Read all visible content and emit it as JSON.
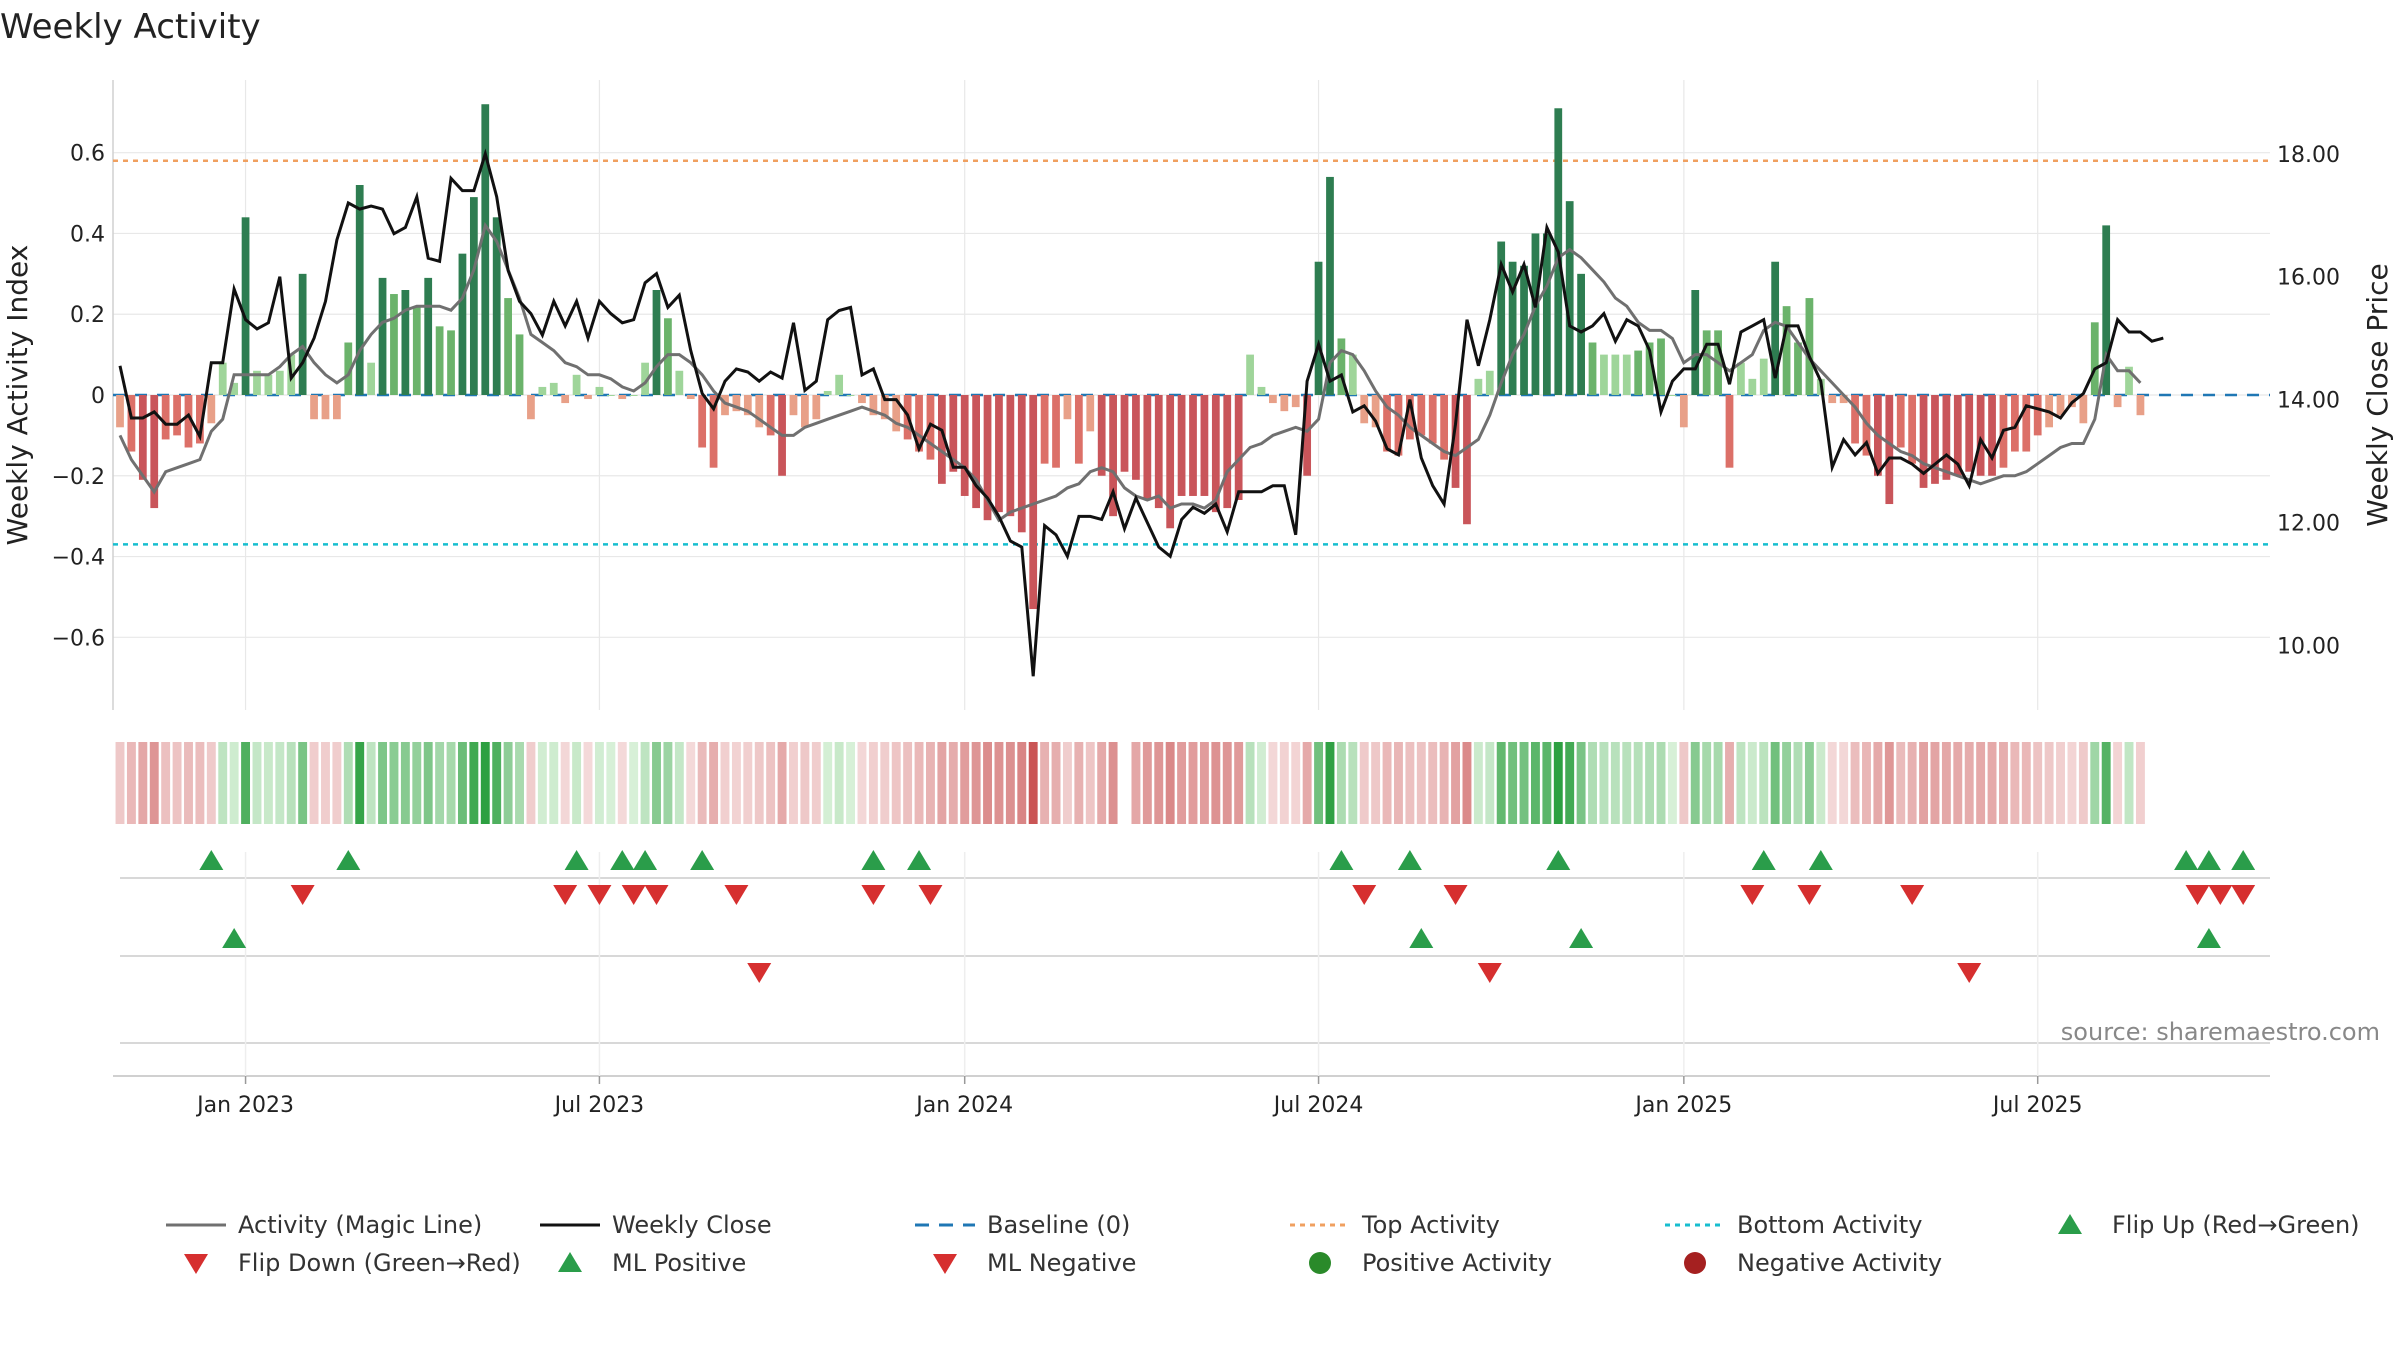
{
  "colors": {
    "strong_green": "#2e7d51",
    "mid_green": "#6bb36b",
    "light_green": "#9fd59a",
    "strong_red": "#c9555a",
    "mid_red": "#dc7068",
    "light_red": "#e8a088",
    "magic_line": "#707070",
    "close_line": "#111111",
    "baseline": "#1f77b4",
    "top_line": "#f0a060",
    "bottom_line": "#17becf",
    "tri_green": "#2a9d4a",
    "tri_red": "#d62f2f",
    "dot_green": "#2a8a2a",
    "dot_red": "#a52020",
    "grid": "#e8e8e8"
  },
  "chart_data": {
    "type": "bar+line",
    "title": "Weekly Activity",
    "ylabel_left": "Weekly Activity Index",
    "ylabel_right": "Weekly Close Price",
    "yticks_left": [
      "0.6",
      "0.4",
      "0.2",
      "0",
      "−0.2",
      "−0.4",
      "−0.6"
    ],
    "yticks_right": [
      "18.00",
      "16.00",
      "14.00",
      "12.00",
      "10.00"
    ],
    "ylim_left": [
      -0.78,
      0.78
    ],
    "ylim_right": [
      8.95,
      19.2
    ],
    "x_dates_label": [
      "Jan 2023",
      "Jul 2023",
      "Jan 2024",
      "Jul 2024",
      "Jan 2025",
      "Jul 2025"
    ],
    "x_tick_week_index": [
      11,
      42,
      74,
      105,
      137,
      168
    ],
    "num_weeks": 189,
    "top_activity": 0.58,
    "bottom_activity": -0.37,
    "activity": [
      -0.08,
      -0.14,
      -0.21,
      -0.28,
      -0.11,
      -0.1,
      -0.13,
      -0.12,
      -0.07,
      0.08,
      0.03,
      0.44,
      0.06,
      0.05,
      0.06,
      0.1,
      0.3,
      -0.06,
      -0.06,
      -0.06,
      0.13,
      0.52,
      0.08,
      0.29,
      0.25,
      0.26,
      0.22,
      0.29,
      0.17,
      0.16,
      0.35,
      0.49,
      0.72,
      0.44,
      0.24,
      0.15,
      -0.06,
      0.02,
      0.03,
      -0.02,
      0.05,
      -0.01,
      0.02,
      0.0,
      -0.01,
      0.0,
      0.08,
      0.26,
      0.19,
      0.06,
      -0.01,
      -0.13,
      -0.18,
      -0.05,
      -0.04,
      -0.05,
      -0.08,
      -0.1,
      -0.2,
      -0.05,
      -0.08,
      -0.06,
      0.01,
      0.05,
      0.0,
      -0.02,
      -0.05,
      -0.06,
      -0.09,
      -0.11,
      -0.14,
      -0.16,
      -0.22,
      -0.19,
      -0.25,
      -0.28,
      -0.31,
      -0.29,
      -0.3,
      -0.34,
      -0.53,
      -0.17,
      -0.18,
      -0.06,
      -0.17,
      -0.09,
      -0.2,
      -0.3,
      -0.19,
      -0.21,
      -0.26,
      -0.28,
      -0.33,
      -0.25,
      -0.25,
      -0.25,
      -0.29,
      -0.28,
      -0.26,
      0.1,
      0.02,
      -0.02,
      -0.04,
      -0.03,
      -0.2,
      0.33,
      0.54,
      0.14,
      0.1,
      -0.07,
      -0.08,
      -0.14,
      -0.15,
      -0.11,
      -0.1,
      -0.12,
      -0.16,
      -0.23,
      -0.32,
      0.04,
      0.06,
      0.38,
      0.33,
      0.32,
      0.4,
      0.4,
      0.71,
      0.48,
      0.3,
      0.13,
      0.1,
      0.1,
      0.1,
      0.11,
      0.13,
      0.14,
      0.0,
      -0.08,
      0.26,
      0.16,
      0.16,
      -0.18,
      0.08,
      0.04,
      0.09,
      0.33,
      0.22,
      0.13,
      0.24,
      0.04,
      -0.02,
      -0.02,
      -0.12,
      -0.15,
      -0.2,
      -0.27,
      -0.13,
      -0.17,
      -0.23,
      -0.22,
      -0.21,
      -0.2,
      -0.19,
      -0.2,
      -0.2,
      -0.18,
      -0.14,
      -0.14,
      -0.1,
      -0.08,
      -0.05,
      -0.03,
      -0.07,
      0.18,
      0.42,
      -0.03,
      0.07,
      -0.05
    ],
    "magic_line": [
      -0.1,
      -0.16,
      -0.2,
      -0.24,
      -0.19,
      -0.18,
      -0.17,
      -0.16,
      -0.09,
      -0.06,
      0.05,
      0.05,
      0.05,
      0.05,
      0.07,
      0.1,
      0.12,
      0.08,
      0.05,
      0.03,
      0.05,
      0.11,
      0.15,
      0.18,
      0.19,
      0.21,
      0.22,
      0.22,
      0.22,
      0.21,
      0.24,
      0.31,
      0.42,
      0.38,
      0.31,
      0.24,
      0.15,
      0.13,
      0.11,
      0.08,
      0.07,
      0.05,
      0.05,
      0.04,
      0.02,
      0.01,
      0.03,
      0.07,
      0.1,
      0.1,
      0.08,
      0.05,
      0.01,
      -0.02,
      -0.03,
      -0.04,
      -0.06,
      -0.08,
      -0.1,
      -0.1,
      -0.08,
      -0.07,
      -0.06,
      -0.05,
      -0.04,
      -0.03,
      -0.04,
      -0.05,
      -0.07,
      -0.08,
      -0.1,
      -0.12,
      -0.14,
      -0.16,
      -0.18,
      -0.21,
      -0.26,
      -0.31,
      -0.29,
      -0.28,
      -0.27,
      -0.26,
      -0.25,
      -0.23,
      -0.22,
      -0.19,
      -0.18,
      -0.19,
      -0.23,
      -0.25,
      -0.26,
      -0.25,
      -0.28,
      -0.27,
      -0.27,
      -0.28,
      -0.26,
      -0.19,
      -0.16,
      -0.13,
      -0.12,
      -0.1,
      -0.09,
      -0.08,
      -0.09,
      -0.06,
      0.08,
      0.11,
      0.1,
      0.06,
      0.01,
      -0.03,
      -0.05,
      -0.08,
      -0.1,
      -0.12,
      -0.14,
      -0.15,
      -0.13,
      -0.11,
      -0.05,
      0.03,
      0.1,
      0.15,
      0.22,
      0.27,
      0.34,
      0.36,
      0.34,
      0.31,
      0.28,
      0.24,
      0.22,
      0.18,
      0.16,
      0.16,
      0.14,
      0.08,
      0.1,
      0.1,
      0.08,
      0.06,
      0.08,
      0.1,
      0.16,
      0.18,
      0.17,
      0.13,
      0.09,
      0.06,
      0.03,
      0.0,
      -0.03,
      -0.07,
      -0.1,
      -0.12,
      -0.14,
      -0.15,
      -0.17,
      -0.18,
      -0.19,
      -0.2,
      -0.21,
      -0.22,
      -0.21,
      -0.2,
      -0.2,
      -0.19,
      -0.17,
      -0.15,
      -0.13,
      -0.12,
      -0.12,
      -0.06,
      0.1,
      0.06,
      0.06,
      0.03
    ],
    "weekly_close": [
      14.55,
      13.7,
      13.7,
      13.8,
      13.6,
      13.6,
      13.75,
      13.4,
      14.6,
      14.6,
      15.8,
      15.3,
      15.15,
      15.25,
      16.0,
      14.35,
      14.6,
      15.0,
      15.6,
      16.6,
      17.2,
      17.1,
      17.15,
      17.1,
      16.7,
      16.8,
      17.3,
      16.3,
      16.25,
      17.6,
      17.4,
      17.4,
      18.0,
      17.3,
      16.1,
      15.6,
      15.4,
      15.05,
      15.6,
      15.2,
      15.6,
      15.0,
      15.6,
      15.4,
      15.25,
      15.3,
      15.9,
      16.05,
      15.5,
      15.7,
      14.8,
      14.1,
      13.85,
      14.3,
      14.5,
      14.45,
      14.3,
      14.45,
      14.35,
      15.25,
      14.15,
      14.3,
      15.3,
      15.45,
      15.5,
      14.4,
      14.5,
      14.0,
      14.0,
      13.75,
      13.2,
      13.6,
      13.5,
      12.9,
      12.9,
      12.6,
      12.4,
      12.1,
      11.7,
      11.6,
      9.5,
      11.95,
      11.8,
      11.45,
      12.1,
      12.1,
      12.05,
      12.5,
      11.9,
      12.4,
      12.0,
      11.6,
      11.45,
      12.05,
      12.25,
      12.15,
      12.3,
      11.85,
      12.5,
      12.5,
      12.5,
      12.6,
      12.6,
      11.8,
      14.3,
      14.9,
      14.3,
      14.4,
      13.8,
      13.9,
      13.65,
      13.2,
      13.1,
      14.0,
      13.05,
      12.6,
      12.3,
      13.6,
      15.3,
      14.55,
      15.3,
      16.2,
      15.75,
      16.2,
      15.5,
      16.8,
      16.4,
      15.2,
      15.1,
      15.2,
      15.4,
      14.95,
      15.3,
      15.2,
      14.8,
      13.8,
      14.3,
      14.5,
      14.5,
      14.9,
      14.9,
      14.25,
      15.1,
      15.2,
      15.3,
      14.35,
      15.2,
      15.2,
      14.7,
      14.3,
      12.9,
      13.35,
      13.1,
      13.3,
      12.8,
      13.05,
      13.05,
      12.95,
      12.8,
      12.95,
      13.1,
      12.95,
      12.6,
      13.35,
      13.05,
      13.5,
      13.55,
      13.9,
      13.85,
      13.8,
      13.7,
      13.95,
      14.1,
      14.5,
      14.6,
      15.3,
      15.1,
      15.1,
      14.95,
      15.0
    ],
    "flip_up": [
      8,
      20,
      40,
      44,
      46,
      51,
      66,
      70,
      107,
      113,
      126,
      144,
      149,
      181,
      183,
      186
    ],
    "flip_down": [
      16,
      39,
      42,
      45,
      47,
      54,
      66,
      71,
      109,
      117,
      143,
      148,
      157,
      182,
      184,
      186
    ],
    "ml_positive": [
      10,
      114,
      128,
      183
    ],
    "ml_negative": [
      56,
      120,
      162
    ],
    "positive_activity": [],
    "negative_activity": [],
    "source": "source: sharemaestro.com",
    "legend": [
      {
        "label": "Activity (Magic Line)",
        "kind": "line-gray"
      },
      {
        "label": "Weekly Close",
        "kind": "line-black"
      },
      {
        "label": "Baseline (0)",
        "kind": "dash-blue"
      },
      {
        "label": "Top Activity",
        "kind": "dot-orange"
      },
      {
        "label": "Bottom Activity",
        "kind": "dot-cyan"
      },
      {
        "label": "Flip Up (Red→Green)",
        "kind": "tri-up"
      },
      {
        "label": "Flip Down (Green→Red)",
        "kind": "tri-down"
      },
      {
        "label": "ML Positive",
        "kind": "tri-up"
      },
      {
        "label": "ML Negative",
        "kind": "tri-down"
      },
      {
        "label": "Positive Activity",
        "kind": "circle-green"
      },
      {
        "label": "Negative Activity",
        "kind": "circle-red"
      }
    ]
  }
}
